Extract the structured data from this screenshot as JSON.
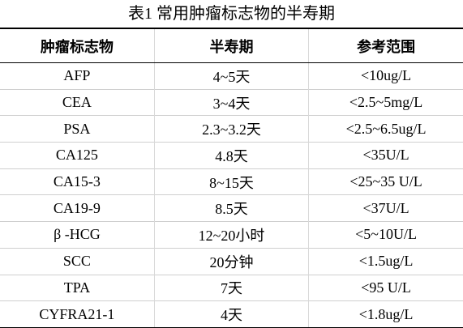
{
  "title": "表1 常用肿瘤标志物的半寿期",
  "table": {
    "columns": [
      "肿瘤标志物",
      "半寿期",
      "参考范围"
    ],
    "rows": [
      [
        "AFP",
        "4~5天",
        "<10ug/L"
      ],
      [
        "CEA",
        "3~4天",
        "<2.5~5mg/L"
      ],
      [
        "PSA",
        "2.3~3.2天",
        "<2.5~6.5ug/L"
      ],
      [
        "CA125",
        "4.8天",
        "<35U/L"
      ],
      [
        "CA15-3",
        "8~15天",
        "<25~35 U/L"
      ],
      [
        "CA19-9",
        "8.5天",
        "<37U/L"
      ],
      [
        "β -HCG",
        "12~20小时",
        "<5~10U/L"
      ],
      [
        "SCC",
        "20分钟",
        "<1.5ug/L"
      ],
      [
        "TPA",
        "7天",
        "<95 U/L"
      ],
      [
        "CYFRA21-1",
        "4天",
        "<1.8ug/L"
      ]
    ]
  }
}
